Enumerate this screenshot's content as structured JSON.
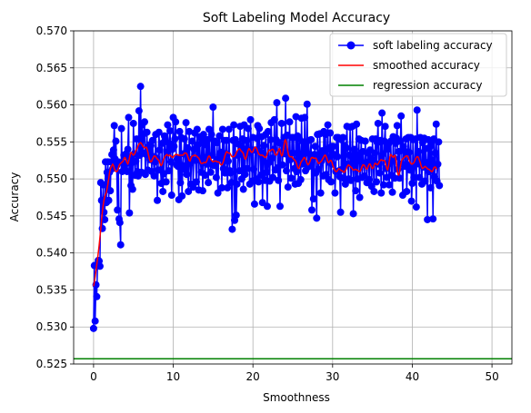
{
  "chart_data": {
    "type": "line",
    "title": "Soft Labeling Model Accuracy",
    "xlabel": "Smoothness",
    "ylabel": "Accuracy",
    "xlim": [
      -2.5,
      52.5
    ],
    "ylim": [
      0.525,
      0.57
    ],
    "xticks": [
      0,
      10,
      20,
      30,
      40,
      50
    ],
    "yticks": [
      0.525,
      0.53,
      0.535,
      0.54,
      0.545,
      0.55,
      0.555,
      0.56,
      0.565,
      0.57
    ],
    "grid": true,
    "legend_position": "top-right",
    "x_start": 0,
    "x_step": 0.1,
    "series": [
      {
        "name": "soft labeling accuracy",
        "color": "#0000ff",
        "marker": "circle",
        "values": [
          0.5298,
          0.5383,
          0.5308,
          0.5357,
          0.5341,
          0.5385,
          0.539,
          0.5389,
          0.5382,
          0.5495,
          0.5471,
          0.5433,
          0.5492,
          0.5455,
          0.5445,
          0.5523,
          0.5468,
          0.5509,
          0.5523,
          0.5471,
          0.5509,
          0.5484,
          0.5523,
          0.5533,
          0.5514,
          0.5539,
          0.5572,
          0.5527,
          0.5551,
          0.5518,
          0.5458,
          0.5523,
          0.5446,
          0.5441,
          0.5411,
          0.5568,
          0.551,
          0.5521,
          0.5532,
          0.5514,
          0.552,
          0.5534,
          0.551,
          0.554,
          0.5583,
          0.5454,
          0.553,
          0.5491,
          0.5522,
          0.5486,
          0.5575,
          0.5534,
          0.5505,
          0.5524,
          0.5554,
          0.551,
          0.5504,
          0.5592,
          0.5532,
          0.5625,
          0.5509,
          0.5573,
          0.5535,
          0.5561,
          0.5577,
          0.5506,
          0.5533,
          0.5563,
          0.5512,
          0.5544,
          0.5546,
          0.5526,
          0.5545,
          0.551,
          0.5552,
          0.553,
          0.5504,
          0.5523,
          0.556,
          0.5528,
          0.5471,
          0.5512,
          0.5563,
          0.5539,
          0.5512,
          0.5494,
          0.5548,
          0.5483,
          0.5507,
          0.5558,
          0.5554,
          0.5496,
          0.5536,
          0.5573,
          0.5511,
          0.5548,
          0.5565,
          0.5523,
          0.5478,
          0.554,
          0.5583,
          0.5544,
          0.5554,
          0.5577,
          0.5519,
          0.5527,
          0.5517,
          0.5472,
          0.5564,
          0.5495,
          0.5556,
          0.5477,
          0.5518,
          0.5534,
          0.5554,
          0.5513,
          0.5576,
          0.5506,
          0.5542,
          0.5483,
          0.5564,
          0.5521,
          0.5493,
          0.5526,
          0.5551,
          0.5489,
          0.554,
          0.5562,
          0.5525,
          0.5496,
          0.5567,
          0.5546,
          0.5485,
          0.5557,
          0.5525,
          0.5509,
          0.5552,
          0.5484,
          0.556,
          0.5529,
          0.5505,
          0.5546,
          0.552,
          0.5553,
          0.5495,
          0.5567,
          0.5521,
          0.5509,
          0.556,
          0.5532,
          0.5597,
          0.5518,
          0.5551,
          0.5522,
          0.5502,
          0.5549,
          0.5481,
          0.5527,
          0.5558,
          0.5533,
          0.5536,
          0.5488,
          0.5567,
          0.5514,
          0.5552,
          0.5508,
          0.5534,
          0.5552,
          0.5488,
          0.5524,
          0.5567,
          0.5511,
          0.5508,
          0.5495,
          0.5432,
          0.5552,
          0.5573,
          0.5444,
          0.5553,
          0.5451,
          0.5493,
          0.5532,
          0.5547,
          0.5511,
          0.5571,
          0.5541,
          0.55,
          0.5554,
          0.5486,
          0.5573,
          0.5506,
          0.554,
          0.5552,
          0.5514,
          0.5568,
          0.5536,
          0.5493,
          0.558,
          0.5539,
          0.5497,
          0.5556,
          0.5513,
          0.5466,
          0.5539,
          0.55,
          0.5555,
          0.5572,
          0.5496,
          0.5568,
          0.5537,
          0.5505,
          0.5557,
          0.5468,
          0.5531,
          0.5545,
          0.5498,
          0.556,
          0.5509,
          0.5463,
          0.5564,
          0.5522,
          0.5497,
          0.5553,
          0.5576,
          0.5528,
          0.5502,
          0.554,
          0.558,
          0.5512,
          0.5553,
          0.5603,
          0.5515,
          0.5498,
          0.5549,
          0.5463,
          0.5536,
          0.5575,
          0.5519,
          0.5546,
          0.5556,
          0.5534,
          0.5609,
          0.5511,
          0.5559,
          0.5489,
          0.5531,
          0.5577,
          0.5526,
          0.5501,
          0.5556,
          0.5535,
          0.5556,
          0.5514,
          0.5493,
          0.5584,
          0.551,
          0.5558,
          0.5494,
          0.5555,
          0.5532,
          0.5499,
          0.5582,
          0.552,
          0.555,
          0.5523,
          0.5583,
          0.5511,
          0.5535,
          0.5601,
          0.5516,
          0.5552,
          0.5521,
          0.5533,
          0.5553,
          0.5458,
          0.5529,
          0.5473,
          0.5533,
          0.5544,
          0.5508,
          0.5447,
          0.556,
          0.5513,
          0.5532,
          0.5561,
          0.5481,
          0.5524,
          0.5538,
          0.5504,
          0.5564,
          0.553,
          0.556,
          0.5506,
          0.554,
          0.5573,
          0.5499,
          0.5522,
          0.5562,
          0.5496,
          0.5544,
          0.552,
          0.5544,
          0.5533,
          0.5481,
          0.551,
          0.5556,
          0.553,
          0.5556,
          0.5511,
          0.5503,
          0.5455,
          0.5553,
          0.5513,
          0.5556,
          0.5501,
          0.5545,
          0.5493,
          0.5542,
          0.5571,
          0.552,
          0.55,
          0.5532,
          0.557,
          0.5498,
          0.552,
          0.5571,
          0.5453,
          0.554,
          0.5533,
          0.5484,
          0.5574,
          0.55,
          0.5531,
          0.5554,
          0.5475,
          0.5524,
          0.5552,
          0.5502,
          0.5537,
          0.552,
          0.5504,
          0.5551,
          0.5522,
          0.5495,
          0.5535,
          0.5523,
          0.5499,
          0.5539,
          0.5528,
          0.549,
          0.5554,
          0.5521,
          0.5483,
          0.5535,
          0.5554,
          0.5496,
          0.5549,
          0.5575,
          0.552,
          0.5508,
          0.5552,
          0.5481,
          0.5589,
          0.5534,
          0.5492,
          0.5551,
          0.5571,
          0.5514,
          0.5502,
          0.554,
          0.5547,
          0.5492,
          0.5521,
          0.5551,
          0.5505,
          0.5482,
          0.5557,
          0.5528,
          0.5501,
          0.5548,
          0.5555,
          0.5572,
          0.5513,
          0.5537,
          0.5501,
          0.5551,
          0.5585,
          0.552,
          0.5478,
          0.5544,
          0.5538,
          0.5517,
          0.5554,
          0.5483,
          0.5519,
          0.5556,
          0.5536,
          0.5512,
          0.5556,
          0.547,
          0.5494,
          0.5553,
          0.5502,
          0.5518,
          0.5554,
          0.5462,
          0.5593,
          0.5521,
          0.5537,
          0.5502,
          0.5556,
          0.5519,
          0.5493,
          0.5549,
          0.5516,
          0.5555,
          0.5497,
          0.5541,
          0.5522,
          0.5445,
          0.5553,
          0.551,
          0.5543,
          0.5488,
          0.5549,
          0.5525,
          0.5446,
          0.5554,
          0.5503,
          0.5535,
          0.5574,
          0.5497,
          0.552,
          0.555,
          0.5491
        ]
      },
      {
        "name": "smoothed accuracy",
        "color": "#ff0000",
        "marker": "none",
        "values": [
          0.5355,
          0.5361,
          0.5368,
          0.5376,
          0.5384,
          0.5392,
          0.5401,
          0.541,
          0.5421,
          0.5432,
          0.5444,
          0.5455,
          0.5464,
          0.5471,
          0.5476,
          0.5479,
          0.5482,
          0.5487,
          0.5493,
          0.55,
          0.5508,
          0.5513,
          0.5516,
          0.5518,
          0.552,
          0.5518,
          0.5514,
          0.5511,
          0.551,
          0.551,
          0.5511,
          0.5514,
          0.5518,
          0.552,
          0.5521,
          0.5522,
          0.5523,
          0.5524,
          0.5527,
          0.5529,
          0.5528,
          0.5525,
          0.5522,
          0.552,
          0.5523,
          0.5528,
          0.5533,
          0.5536,
          0.5535,
          0.5533,
          0.5532,
          0.5533,
          0.5535,
          0.5538,
          0.554,
          0.5542,
          0.5545,
          0.5547,
          0.5548,
          0.5549,
          0.5548,
          0.5546,
          0.5544,
          0.5543,
          0.5542,
          0.5542,
          0.5543,
          0.5541,
          0.5537,
          0.5532,
          0.5527,
          0.5524,
          0.5523,
          0.5524,
          0.5527,
          0.5529,
          0.5531,
          0.5531,
          0.553,
          0.5528,
          0.5527,
          0.5526,
          0.5525,
          0.5522,
          0.5519,
          0.5518,
          0.552,
          0.5524,
          0.5527,
          0.5529,
          0.5531,
          0.5532,
          0.5533,
          0.5532,
          0.5531,
          0.5532,
          0.5532,
          0.5531,
          0.553,
          0.5529,
          0.553,
          0.5531,
          0.5532,
          0.5533,
          0.5533,
          0.5533,
          0.5532,
          0.5532,
          0.5532,
          0.5532,
          0.5532,
          0.5532,
          0.5532,
          0.5533,
          0.5535,
          0.5535,
          0.5535,
          0.5534,
          0.5531,
          0.5528,
          0.5525,
          0.5524,
          0.5527,
          0.553,
          0.5531,
          0.5531,
          0.5532,
          0.5532,
          0.5532,
          0.5531,
          0.553,
          0.5529,
          0.5528,
          0.5526,
          0.5523,
          0.5521,
          0.5521,
          0.5521,
          0.5522,
          0.5522,
          0.5522,
          0.5522,
          0.5524,
          0.5527,
          0.553,
          0.5531,
          0.553,
          0.5527,
          0.5525,
          0.5524,
          0.5523,
          0.5524,
          0.5524,
          0.5524,
          0.5524,
          0.5523,
          0.5523,
          0.5523,
          0.5522,
          0.552,
          0.5519,
          0.5519,
          0.5521,
          0.5524,
          0.5528,
          0.5532,
          0.5535,
          0.5537,
          0.5536,
          0.5535,
          0.5535,
          0.5535,
          0.5533,
          0.5531,
          0.553,
          0.553,
          0.553,
          0.5531,
          0.5532,
          0.5535,
          0.5537,
          0.5539,
          0.554,
          0.5541,
          0.554,
          0.5538,
          0.5537,
          0.5536,
          0.5534,
          0.553,
          0.5527,
          0.5527,
          0.553,
          0.5535,
          0.5539,
          0.5541,
          0.554,
          0.5538,
          0.5536,
          0.5536,
          0.5537,
          0.554,
          0.5542,
          0.5543,
          0.5542,
          0.554,
          0.5537,
          0.5534,
          0.5533,
          0.5532,
          0.5532,
          0.5532,
          0.5532,
          0.5531,
          0.553,
          0.5529,
          0.5529,
          0.5531,
          0.5534,
          0.5537,
          0.5539,
          0.5539,
          0.5538,
          0.5539,
          0.554,
          0.554,
          0.5539,
          0.5536,
          0.5533,
          0.5532,
          0.5533,
          0.5535,
          0.5539,
          0.5541,
          0.5539,
          0.5534,
          0.5531,
          0.5532,
          0.5538,
          0.5545,
          0.5552,
          0.5553,
          0.5549,
          0.5542,
          0.5536,
          0.5532,
          0.553,
          0.553,
          0.553,
          0.553,
          0.5528,
          0.5527,
          0.5526,
          0.5525,
          0.5523,
          0.552,
          0.5516,
          0.5514,
          0.5515,
          0.5518,
          0.5522,
          0.5524,
          0.5525,
          0.5527,
          0.5529,
          0.5529,
          0.5527,
          0.5524,
          0.5521,
          0.5519,
          0.552,
          0.5522,
          0.5525,
          0.5528,
          0.5529,
          0.5529,
          0.5528,
          0.5528,
          0.5528,
          0.5528,
          0.5526,
          0.5524,
          0.5521,
          0.5521,
          0.5522,
          0.5523,
          0.5524,
          0.5526,
          0.5528,
          0.553,
          0.5532,
          0.5532,
          0.553,
          0.5527,
          0.5523,
          0.5522,
          0.5523,
          0.5525,
          0.5525,
          0.5523,
          0.5519,
          0.5516,
          0.5513,
          0.5511,
          0.551,
          0.551,
          0.5511,
          0.5513,
          0.5514,
          0.5513,
          0.5512,
          0.5511,
          0.5511,
          0.551,
          0.5509,
          0.5509,
          0.5511,
          0.5513,
          0.5516,
          0.5518,
          0.5519,
          0.5518,
          0.5517,
          0.5516,
          0.5515,
          0.5513,
          0.5512,
          0.5512,
          0.5513,
          0.5513,
          0.5512,
          0.5512,
          0.5511,
          0.551,
          0.551,
          0.5511,
          0.5514,
          0.5517,
          0.5519,
          0.5519,
          0.5518,
          0.5516,
          0.5514,
          0.5513,
          0.5515,
          0.5518,
          0.552,
          0.552,
          0.5518,
          0.5515,
          0.5514,
          0.5515,
          0.5518,
          0.5521,
          0.5521,
          0.552,
          0.5519,
          0.552,
          0.5522,
          0.5524,
          0.5525,
          0.5526,
          0.5525,
          0.5525,
          0.5525,
          0.5525,
          0.5523,
          0.5518,
          0.5514,
          0.5512,
          0.5516,
          0.5523,
          0.553,
          0.5533,
          0.5532,
          0.553,
          0.5529,
          0.5531,
          0.5532,
          0.5529,
          0.5522,
          0.5513,
          0.5506,
          0.5505,
          0.5509,
          0.5516,
          0.5522,
          0.5526,
          0.5527,
          0.5528,
          0.5529,
          0.553,
          0.5531,
          0.5531,
          0.5531,
          0.5529,
          0.5526,
          0.5523,
          0.5521,
          0.552,
          0.552,
          0.5521,
          0.5522,
          0.5524,
          0.5527,
          0.5529,
          0.553,
          0.553,
          0.5528,
          0.5525,
          0.5522,
          0.5518,
          0.5515,
          0.5514,
          0.5515,
          0.5516,
          0.5517,
          0.5516,
          0.5515,
          0.5514,
          0.5513,
          0.5513,
          0.5512,
          0.5511,
          0.551,
          0.551,
          0.5512,
          0.5515,
          0.5516,
          0.5516,
          0.5514,
          0.5513
        ]
      },
      {
        "name": "regression accuracy",
        "color": "#008000",
        "marker": "none",
        "constant": 0.5257
      }
    ]
  }
}
